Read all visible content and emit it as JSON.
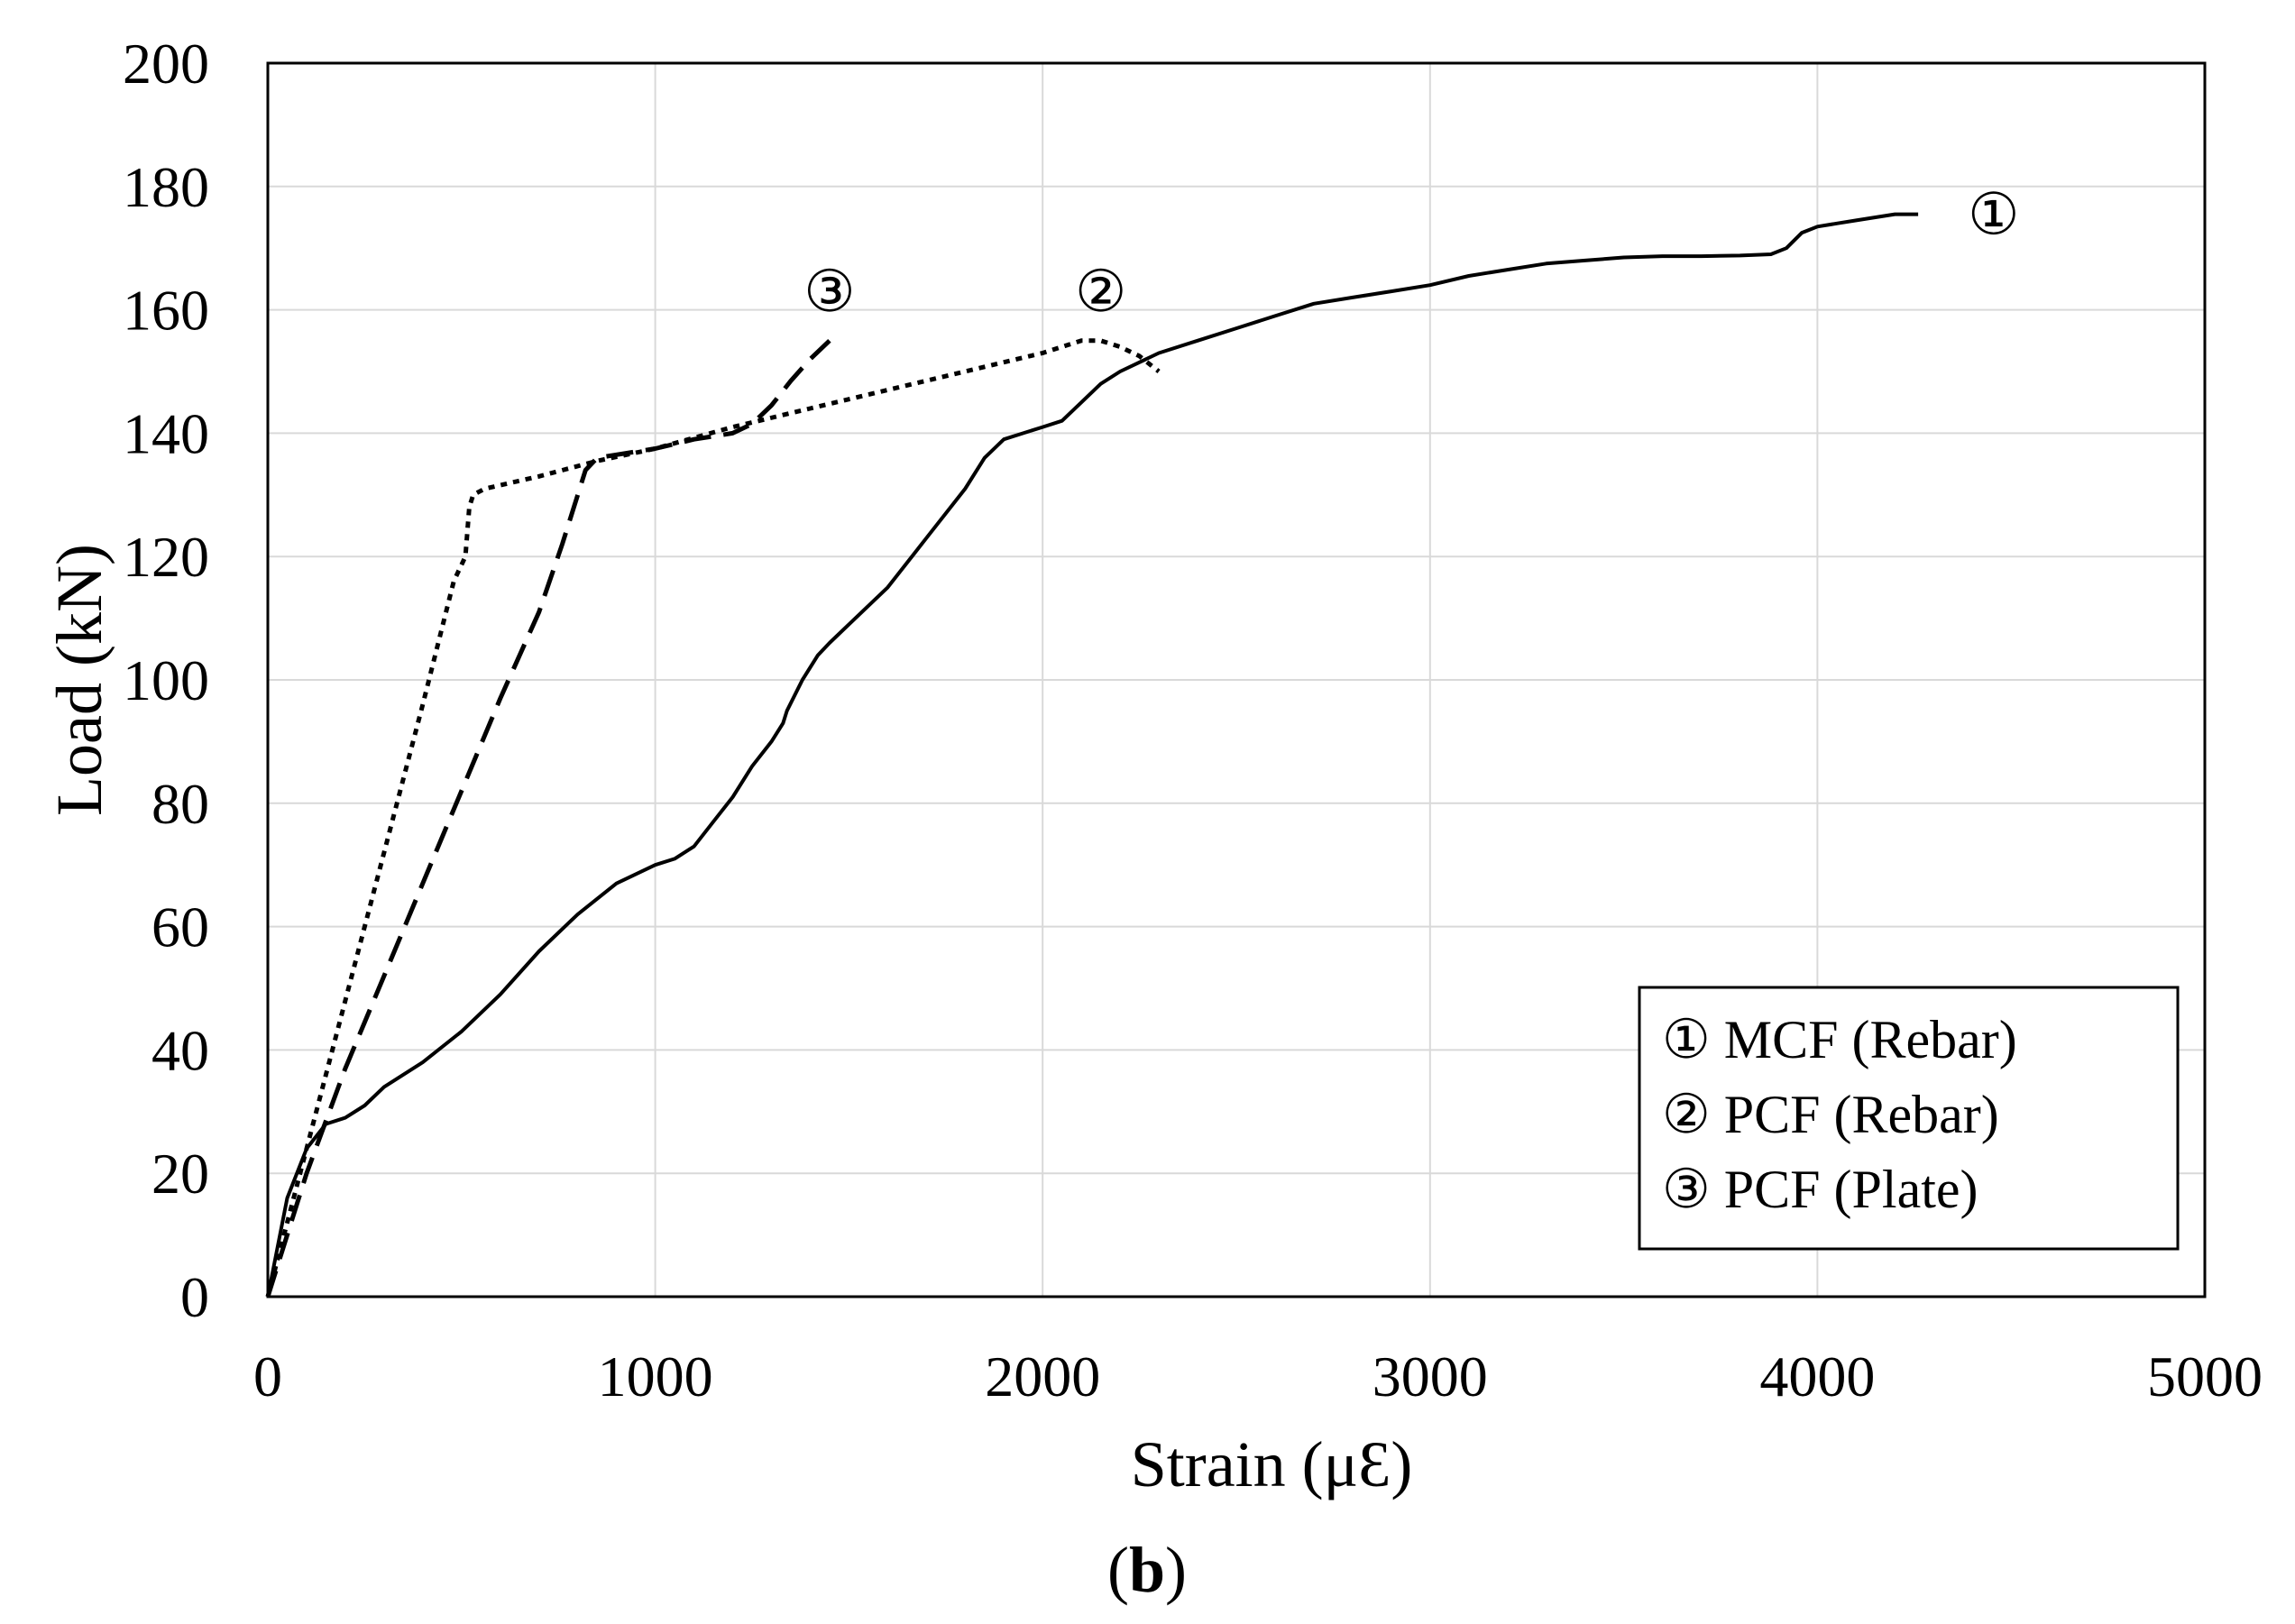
{
  "chart_data": {
    "type": "line",
    "title": "",
    "xlabel": "Strain (μƐ)",
    "ylabel": "Load (kN)",
    "xlim": [
      0,
      5000
    ],
    "ylim": [
      0,
      200
    ],
    "xticks": [
      0,
      1000,
      2000,
      3000,
      4000,
      5000
    ],
    "yticks": [
      0,
      20,
      40,
      60,
      80,
      100,
      120,
      140,
      160,
      180,
      200
    ],
    "grid": true,
    "legend_position": "bottom-right",
    "caption_open": "(",
    "caption_letter": "b",
    "caption_close": ")",
    "series": [
      {
        "name": "① MCF (Rebar)",
        "marker": "①",
        "style": "solid",
        "x": [
          0,
          50,
          100,
          150,
          200,
          250,
          300,
          400,
          500,
          600,
          700,
          800,
          900,
          1000,
          1050,
          1100,
          1150,
          1200,
          1250,
          1300,
          1330,
          1340,
          1380,
          1420,
          1450,
          1500,
          1600,
          1700,
          1800,
          1850,
          1900,
          1950,
          2000,
          2050,
          2100,
          2150,
          2200,
          2300,
          2400,
          2500,
          2600,
          2700,
          2800,
          2900,
          3000,
          3100,
          3200,
          3300,
          3400,
          3500,
          3600,
          3700,
          3800,
          3880,
          3920,
          3960,
          4000,
          4050,
          4100,
          4150,
          4200,
          4260
        ],
        "y": [
          0,
          16,
          24,
          28,
          29,
          31,
          34,
          38,
          43,
          49,
          56,
          62,
          67,
          70,
          71,
          73,
          77,
          81,
          86,
          90,
          93,
          95,
          100,
          104,
          106,
          109,
          115,
          123,
          131,
          136,
          139,
          140,
          141,
          142,
          145,
          148,
          150,
          153,
          155,
          157,
          159,
          161,
          162,
          163,
          164,
          165.5,
          166.5,
          167.5,
          168,
          168.5,
          168.7,
          168.7,
          168.8,
          169,
          170,
          172.5,
          173.5,
          174,
          174.5,
          175,
          175.5,
          175.5
        ]
      },
      {
        "name": "② PCF (Rebar)",
        "marker": "②",
        "style": "dotted",
        "x": [
          0,
          100,
          200,
          300,
          400,
          480,
          510,
          520,
          530,
          560,
          700,
          850,
          1000,
          1200,
          1400,
          1600,
          1800,
          2000,
          2100,
          2150,
          2200,
          2250,
          2300
        ],
        "y": [
          0,
          24,
          48,
          72,
          96,
          116,
          120,
          128,
          130,
          131,
          133,
          135.5,
          137.5,
          141,
          144,
          147,
          150,
          153,
          155,
          155,
          154,
          152.5,
          150
        ]
      },
      {
        "name": "③ PCF (Plate)",
        "marker": "③",
        "style": "dashed",
        "x": [
          0,
          100,
          200,
          300,
          400,
          500,
          600,
          700,
          760,
          800,
          820,
          850,
          900,
          1000,
          1100,
          1200,
          1250,
          1300,
          1350,
          1400,
          1450
        ],
        "y": [
          0,
          20,
          37,
          52,
          67,
          82,
          97,
          111,
          122,
          130,
          134,
          136,
          136.5,
          137.5,
          139,
          140,
          141.5,
          144.5,
          148.5,
          152,
          155
        ]
      }
    ]
  }
}
